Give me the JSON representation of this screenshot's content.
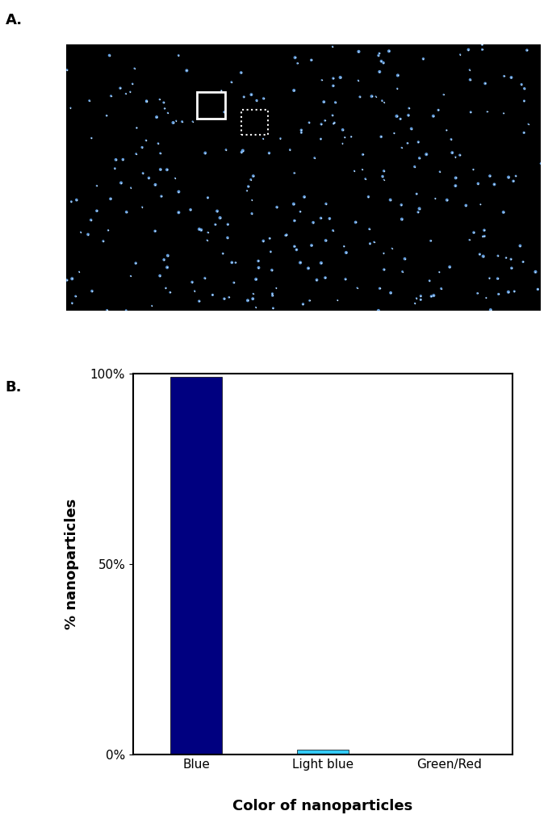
{
  "panel_labels": [
    "A.",
    "B."
  ],
  "chart_data": {
    "type": "bar",
    "categories": [
      "Blue",
      "Light blue",
      "Green/Red"
    ],
    "values": [
      99,
      1.2,
      0
    ],
    "colors": [
      "#000080",
      "#33ccff",
      "#33cc66"
    ],
    "xlabel": "Color of nanoparticles",
    "ylabel": "% nanoparticles",
    "ylim": [
      0,
      100
    ],
    "yticks": [
      {
        "value": 0,
        "label": "0%"
      },
      {
        "value": 50,
        "label": "50%"
      },
      {
        "value": 100,
        "label": "100%"
      }
    ],
    "grid": false
  }
}
